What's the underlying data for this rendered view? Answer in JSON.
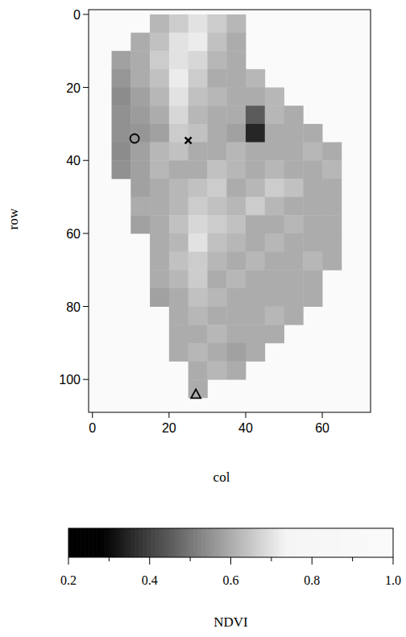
{
  "chart_data": {
    "type": "heatmap",
    "x_label": "col",
    "y_label": "row",
    "xlim": [
      -1,
      72.6
    ],
    "ylim": [
      109,
      -1.3
    ],
    "xticks": [
      0,
      20,
      40,
      60
    ],
    "yticks": [
      0,
      20,
      40,
      60,
      80,
      100
    ],
    "col_edges": [
      0,
      5,
      10,
      15,
      20,
      25,
      30,
      35,
      40,
      45,
      50,
      55,
      60,
      65,
      70,
      75
    ],
    "row_edges": [
      0,
      5,
      10,
      15,
      20,
      25,
      30,
      35,
      40,
      45,
      50,
      55,
      60,
      65,
      70,
      75,
      80,
      85,
      90,
      95,
      100,
      105
    ],
    "cells": [
      [
        null,
        null,
        null,
        0.62,
        0.66,
        0.7,
        0.66,
        0.62,
        null,
        null,
        null,
        null,
        null,
        null,
        null
      ],
      [
        null,
        null,
        0.6,
        0.64,
        0.7,
        0.72,
        0.64,
        0.6,
        null,
        null,
        null,
        null,
        null,
        null,
        null
      ],
      [
        null,
        0.58,
        0.6,
        0.66,
        0.7,
        0.68,
        0.62,
        0.6,
        null,
        null,
        null,
        null,
        null,
        null,
        null
      ],
      [
        null,
        0.56,
        0.6,
        0.64,
        0.72,
        0.66,
        0.6,
        0.6,
        0.62,
        null,
        null,
        null,
        null,
        null,
        null
      ],
      [
        null,
        0.54,
        0.58,
        0.62,
        0.7,
        0.64,
        0.62,
        0.6,
        0.6,
        0.62,
        null,
        null,
        null,
        null,
        null
      ],
      [
        null,
        0.55,
        0.57,
        0.6,
        0.68,
        0.62,
        0.6,
        0.6,
        0.45,
        0.62,
        0.6,
        null,
        null,
        null,
        null
      ],
      [
        null,
        0.55,
        0.56,
        0.58,
        0.66,
        0.64,
        0.6,
        0.58,
        0.35,
        0.6,
        0.6,
        0.6,
        null,
        null,
        null
      ],
      [
        null,
        0.54,
        0.58,
        0.62,
        0.64,
        0.6,
        0.6,
        0.62,
        0.6,
        0.6,
        0.6,
        0.62,
        0.6,
        null,
        null
      ],
      [
        null,
        0.55,
        0.58,
        0.62,
        0.6,
        0.6,
        0.64,
        0.62,
        0.6,
        0.62,
        0.6,
        0.6,
        0.62,
        null,
        null
      ],
      [
        null,
        null,
        0.58,
        0.6,
        0.62,
        0.64,
        0.66,
        0.6,
        0.62,
        0.66,
        0.64,
        0.6,
        0.6,
        null,
        null
      ],
      [
        null,
        null,
        0.6,
        0.6,
        0.62,
        0.66,
        0.64,
        0.62,
        0.66,
        0.62,
        0.6,
        0.6,
        0.6,
        null,
        null
      ],
      [
        null,
        null,
        0.58,
        0.6,
        0.64,
        0.68,
        0.66,
        0.64,
        0.6,
        0.6,
        0.62,
        0.6,
        0.6,
        null,
        null
      ],
      [
        null,
        null,
        null,
        0.6,
        0.62,
        0.7,
        0.64,
        0.62,
        0.6,
        0.62,
        0.6,
        0.6,
        0.6,
        null,
        null
      ],
      [
        null,
        null,
        null,
        0.6,
        0.64,
        0.66,
        0.62,
        0.6,
        0.62,
        0.6,
        0.6,
        0.62,
        0.6,
        null,
        null
      ],
      [
        null,
        null,
        null,
        0.6,
        0.62,
        0.66,
        0.6,
        0.62,
        0.6,
        0.6,
        0.6,
        0.6,
        null,
        null,
        null
      ],
      [
        null,
        null,
        null,
        0.58,
        0.6,
        0.64,
        0.62,
        0.6,
        0.6,
        0.6,
        0.6,
        0.6,
        null,
        null,
        null
      ],
      [
        null,
        null,
        null,
        null,
        0.6,
        0.62,
        0.6,
        0.6,
        0.6,
        0.62,
        0.6,
        null,
        null,
        null,
        null
      ],
      [
        null,
        null,
        null,
        null,
        0.6,
        0.6,
        0.62,
        0.6,
        0.6,
        0.6,
        null,
        null,
        null,
        null,
        null
      ],
      [
        null,
        null,
        null,
        null,
        0.6,
        0.62,
        0.6,
        0.58,
        0.6,
        null,
        null,
        null,
        null,
        null,
        null
      ],
      [
        null,
        null,
        null,
        null,
        null,
        0.6,
        0.62,
        0.6,
        null,
        null,
        null,
        null,
        null,
        null,
        null
      ],
      [
        null,
        null,
        null,
        null,
        null,
        0.6,
        null,
        null,
        null,
        null,
        null,
        null,
        null,
        null,
        null
      ]
    ],
    "series": [
      {
        "type": "scatter",
        "marker": "circle",
        "x": [
          11
        ],
        "values": [
          34
        ]
      },
      {
        "type": "scatter",
        "marker": "x",
        "x": [
          25
        ],
        "values": [
          34.5
        ]
      },
      {
        "type": "scatter",
        "marker": "triangle",
        "x": [
          27
        ],
        "values": [
          104
        ]
      }
    ],
    "colorbar": {
      "label": "NDVI",
      "range": [
        0.2,
        1.0
      ],
      "ticks": [
        0.2,
        0.4,
        0.6,
        0.8,
        {
          "value": 1,
          "label": "1.0"
        }
      ],
      "minor_ticks": [
        0.3,
        0.5,
        0.7,
        0.9
      ]
    }
  }
}
